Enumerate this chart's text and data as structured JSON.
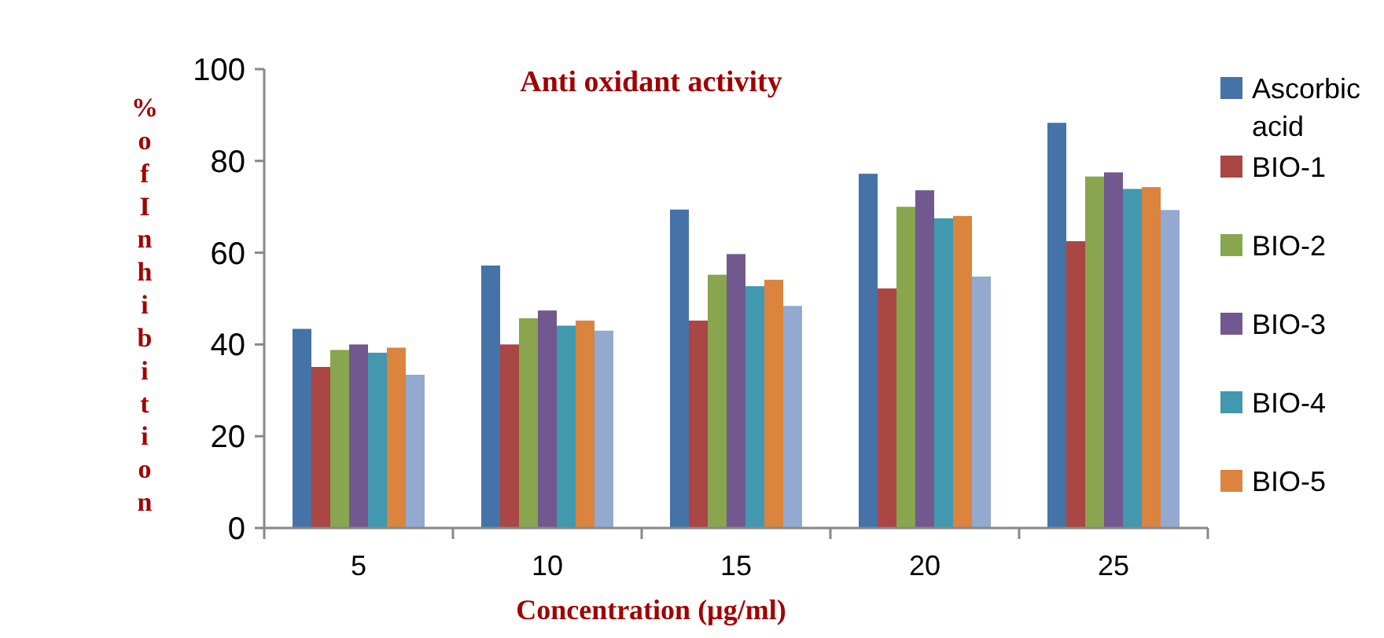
{
  "chart_data": {
    "type": "bar",
    "title": "Anti oxidant activity",
    "xlabel": "Concentration (µg/ml)",
    "ylabel": "% of Inhibition",
    "categories": [
      "5",
      "10",
      "15",
      "20",
      "25"
    ],
    "series": [
      {
        "name": "Ascorbic acid",
        "color": "#4572a7",
        "values": [
          43.4,
          57.2,
          69.4,
          77.2,
          88.3
        ]
      },
      {
        "name": "BIO-1",
        "color": "#aa4643",
        "values": [
          35.1,
          40.0,
          45.2,
          52.2,
          62.5
        ]
      },
      {
        "name": "BIO-2",
        "color": "#89a54e",
        "values": [
          38.8,
          45.7,
          55.2,
          70.0,
          76.6
        ]
      },
      {
        "name": "BIO-3",
        "color": "#71588f",
        "values": [
          40.0,
          47.4,
          59.7,
          73.6,
          77.5
        ]
      },
      {
        "name": "BIO-4",
        "color": "#4198af",
        "values": [
          38.2,
          44.1,
          52.7,
          67.5,
          73.9
        ]
      },
      {
        "name": "BIO-5",
        "color": "#db843d",
        "values": [
          39.3,
          45.2,
          54.1,
          68.0,
          74.3
        ]
      },
      {
        "color": "#93a9cf",
        "values": [
          33.4,
          43.0,
          48.4,
          54.8,
          69.3
        ]
      }
    ],
    "ylim": [
      0,
      100
    ],
    "yticks": [
      0,
      20,
      40,
      60,
      80,
      100
    ],
    "grid": false,
    "legend": "right"
  }
}
